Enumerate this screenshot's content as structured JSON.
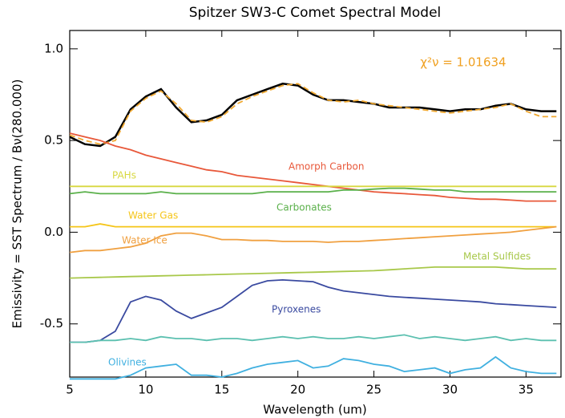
{
  "chart_data": {
    "type": "line",
    "title": "Spitzer SW3-C Comet Spectral Model",
    "xlabel": "Wavelength (um)",
    "ylabel": "Emissivity  = SST Spectrum / Bν(280.000)",
    "annotation": "χ²ν = 1.01634",
    "annotation_color": "#f0a020",
    "xlim": [
      5,
      37.3
    ],
    "ylim": [
      -0.79,
      1.1
    ],
    "xticks": [
      5,
      10,
      15,
      20,
      25,
      30,
      35
    ],
    "yticks": [
      -0.5,
      {
        "value": 0,
        "label": "0.0"
      },
      0.5,
      {
        "value": 1,
        "label": "1.0"
      }
    ],
    "x": [
      5,
      6,
      7,
      8,
      9,
      10,
      11,
      12,
      13,
      14,
      15,
      16,
      17,
      18,
      19,
      20,
      21,
      22,
      23,
      24,
      25,
      26,
      27,
      28,
      29,
      30,
      31,
      32,
      33,
      34,
      35,
      36,
      37
    ],
    "series": [
      {
        "color": "#000000",
        "values": [
          0.52,
          0.48,
          0.47,
          0.52,
          0.67,
          0.74,
          0.78,
          0.68,
          0.6,
          0.61,
          0.64,
          0.72,
          0.75,
          0.78,
          0.81,
          0.8,
          0.75,
          0.72,
          0.72,
          0.71,
          0.7,
          0.68,
          0.68,
          0.68,
          0.67,
          0.66,
          0.67,
          0.67,
          0.69,
          0.7,
          0.67,
          0.66,
          0.66
        ]
      },
      {
        "color": "#f0a830",
        "dashed": true,
        "values": [
          0.53,
          0.5,
          0.48,
          0.5,
          0.66,
          0.73,
          0.77,
          0.7,
          0.61,
          0.6,
          0.63,
          0.7,
          0.74,
          0.77,
          0.8,
          0.81,
          0.76,
          0.72,
          0.71,
          0.72,
          0.7,
          0.69,
          0.68,
          0.67,
          0.66,
          0.65,
          0.66,
          0.67,
          0.68,
          0.7,
          0.66,
          0.63,
          0.63
        ]
      },
      {
        "name": "Amorph Carbon",
        "color": "#e8583a",
        "values": [
          0.54,
          0.52,
          0.5,
          0.47,
          0.45,
          0.42,
          0.4,
          0.38,
          0.36,
          0.34,
          0.33,
          0.31,
          0.3,
          0.29,
          0.28,
          0.27,
          0.26,
          0.25,
          0.24,
          0.23,
          0.22,
          0.215,
          0.21,
          0.205,
          0.2,
          0.19,
          0.185,
          0.18,
          0.18,
          0.175,
          0.17,
          0.17,
          0.17
        ]
      },
      {
        "name": "PAHs",
        "color": "#d8d840",
        "values": [
          0.25,
          0.25,
          0.25,
          0.25,
          0.25,
          0.25,
          0.25,
          0.25,
          0.25,
          0.25,
          0.25,
          0.25,
          0.25,
          0.25,
          0.25,
          0.25,
          0.25,
          0.25,
          0.25,
          0.25,
          0.25,
          0.25,
          0.25,
          0.25,
          0.25,
          0.25,
          0.25,
          0.25,
          0.25,
          0.25,
          0.25,
          0.25,
          0.25
        ]
      },
      {
        "name": "Carbonates",
        "color": "#5ab04a",
        "values": [
          0.21,
          0.22,
          0.21,
          0.21,
          0.21,
          0.21,
          0.22,
          0.21,
          0.21,
          0.21,
          0.21,
          0.21,
          0.21,
          0.22,
          0.22,
          0.22,
          0.22,
          0.22,
          0.23,
          0.23,
          0.235,
          0.24,
          0.24,
          0.235,
          0.23,
          0.23,
          0.22,
          0.22,
          0.22,
          0.22,
          0.22,
          0.22,
          0.22
        ]
      },
      {
        "name": "Water Gas",
        "color": "#f5c518",
        "values": [
          0.03,
          0.03,
          0.045,
          0.03,
          0.03,
          0.03,
          0.03,
          0.03,
          0.03,
          0.03,
          0.03,
          0.03,
          0.03,
          0.03,
          0.03,
          0.03,
          0.03,
          0.03,
          0.03,
          0.03,
          0.03,
          0.03,
          0.03,
          0.03,
          0.03,
          0.03,
          0.03,
          0.03,
          0.03,
          0.03,
          0.03,
          0.03,
          0.03
        ]
      },
      {
        "name": "Water Ice",
        "color": "#f0a040",
        "values": [
          -0.11,
          -0.1,
          -0.1,
          -0.09,
          -0.08,
          -0.06,
          -0.02,
          -0.005,
          -0.005,
          -0.02,
          -0.04,
          -0.04,
          -0.045,
          -0.045,
          -0.05,
          -0.05,
          -0.05,
          -0.055,
          -0.05,
          -0.05,
          -0.045,
          -0.04,
          -0.035,
          -0.03,
          -0.025,
          -0.02,
          -0.015,
          -0.01,
          -0.005,
          0,
          0.01,
          0.02,
          0.03
        ]
      },
      {
        "name": "Metal Sulfides",
        "color": "#a8c84a",
        "values": [
          -0.25,
          -0.248,
          -0.246,
          -0.244,
          -0.242,
          -0.24,
          -0.238,
          -0.236,
          -0.234,
          -0.232,
          -0.23,
          -0.228,
          -0.226,
          -0.224,
          -0.222,
          -0.22,
          -0.218,
          -0.216,
          -0.214,
          -0.212,
          -0.21,
          -0.205,
          -0.2,
          -0.195,
          -0.19,
          -0.19,
          -0.19,
          -0.19,
          -0.19,
          -0.195,
          -0.2,
          -0.2,
          -0.2
        ]
      },
      {
        "name": "Pyroxenes",
        "color": "#3a4aa0",
        "values": [
          -0.6,
          -0.6,
          -0.59,
          -0.54,
          -0.38,
          -0.35,
          -0.37,
          -0.43,
          -0.47,
          -0.44,
          -0.41,
          -0.35,
          -0.29,
          -0.265,
          -0.26,
          -0.265,
          -0.27,
          -0.3,
          -0.32,
          -0.33,
          -0.34,
          -0.35,
          -0.355,
          -0.36,
          -0.365,
          -0.37,
          -0.375,
          -0.38,
          -0.39,
          -0.395,
          -0.4,
          -0.405,
          -0.41
        ]
      },
      {
        "color": "#5cc0b0",
        "values": [
          -0.6,
          -0.6,
          -0.59,
          -0.59,
          -0.58,
          -0.59,
          -0.57,
          -0.58,
          -0.58,
          -0.59,
          -0.58,
          -0.58,
          -0.59,
          -0.58,
          -0.57,
          -0.58,
          -0.57,
          -0.58,
          -0.58,
          -0.57,
          -0.58,
          -0.57,
          -0.56,
          -0.58,
          -0.57,
          -0.58,
          -0.59,
          -0.58,
          -0.57,
          -0.59,
          -0.58,
          -0.59,
          -0.59
        ]
      },
      {
        "name": "Olivines",
        "color": "#40b0e0",
        "values": [
          -0.8,
          -0.8,
          -0.8,
          -0.8,
          -0.78,
          -0.74,
          -0.73,
          -0.72,
          -0.78,
          -0.78,
          -0.79,
          -0.77,
          -0.74,
          -0.72,
          -0.71,
          -0.7,
          -0.74,
          -0.73,
          -0.69,
          -0.7,
          -0.72,
          -0.73,
          -0.76,
          -0.75,
          -0.74,
          -0.77,
          -0.75,
          -0.74,
          -0.68,
          -0.74,
          -0.76,
          -0.77,
          -0.77
        ]
      }
    ]
  }
}
